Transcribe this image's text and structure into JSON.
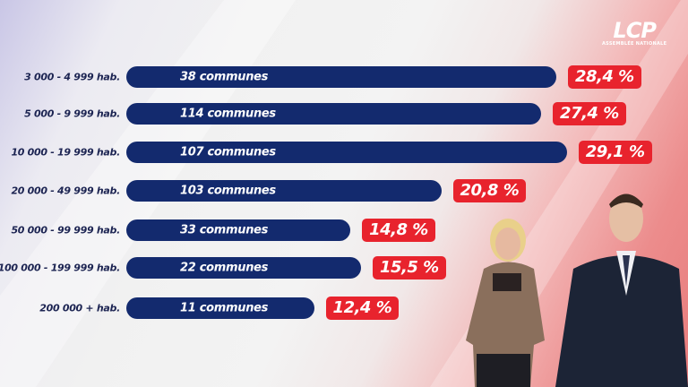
{
  "logo": {
    "name": "LCP",
    "subtitle": "ASSEMBLÉE NATIONALE"
  },
  "chart_data": {
    "type": "bar",
    "orientation": "horizontal",
    "categories": [
      "3 000 - 4 999 hab.",
      "5 000 - 9 999 hab.",
      "10 000 - 19 999 hab.",
      "20 000 - 49 999 hab.",
      "50 000 - 99 999 hab.",
      "100 000 - 199 999 hab.",
      "200 000 + hab."
    ],
    "bar_labels": [
      "38 communes",
      "114 communes",
      "107 communes",
      "103 communes",
      "33 communes",
      "22 communes",
      "11 communes"
    ],
    "values": [
      28.4,
      27.4,
      29.1,
      20.8,
      14.8,
      15.5,
      12.4
    ],
    "value_labels": [
      "28,4 %",
      "27,4 %",
      "29,1 %",
      "20,8 %",
      "14,8 %",
      "15,5 %",
      "12,4 %"
    ],
    "bar_color": "#132a6e",
    "label_color": "#e8232d",
    "grid": false
  }
}
